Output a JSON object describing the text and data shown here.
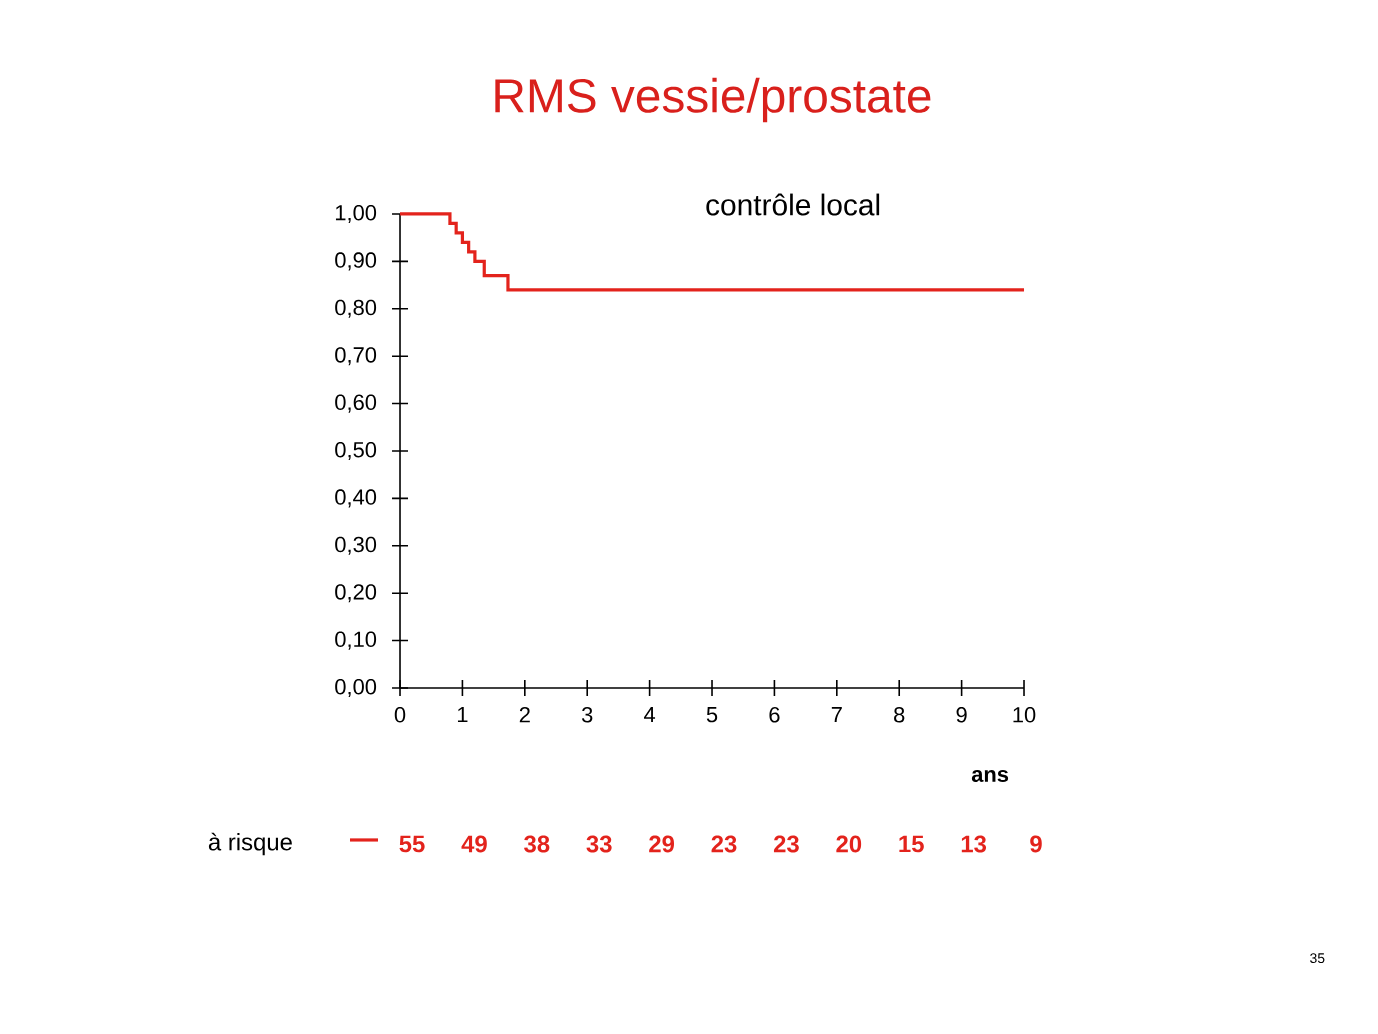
{
  "chart_data": {
    "type": "step",
    "title": "RMS vessie/prostate",
    "subtitle": "contrôle local",
    "xlabel": "ans",
    "x": [
      0,
      0.8,
      0.9,
      1.0,
      1.1,
      1.2,
      1.35,
      1.73,
      10
    ],
    "values": [
      1.0,
      0.98,
      0.96,
      0.94,
      0.92,
      0.9,
      0.87,
      0.84,
      0.84
    ],
    "color": "#e3231c",
    "xlim": [
      0,
      10
    ],
    "xticks": [
      0,
      1,
      2,
      3,
      4,
      5,
      6,
      7,
      8,
      9,
      10
    ],
    "ylim": [
      0,
      1
    ],
    "yticks": [
      {
        "value": 0,
        "label": "0,00"
      },
      {
        "value": 0.1,
        "label": "0,10"
      },
      {
        "value": 0.2,
        "label": "0,20"
      },
      {
        "value": 0.3,
        "label": "0,30"
      },
      {
        "value": 0.4,
        "label": "0,40"
      },
      {
        "value": 0.5,
        "label": "0,50"
      },
      {
        "value": 0.6,
        "label": "0,60"
      },
      {
        "value": 0.7,
        "label": "0,70"
      },
      {
        "value": 0.8,
        "label": "0,80"
      },
      {
        "value": 0.9,
        "label": "0,90"
      },
      {
        "value": 1.0,
        "label": "1,00"
      }
    ],
    "grid": false,
    "marker": "none",
    "line_style": "solid",
    "annotations": [
      "à risque",
      "55",
      "49",
      "38",
      "33",
      "29",
      "23",
      "23",
      "20",
      "15",
      "13",
      "9",
      "35"
    ]
  }
}
